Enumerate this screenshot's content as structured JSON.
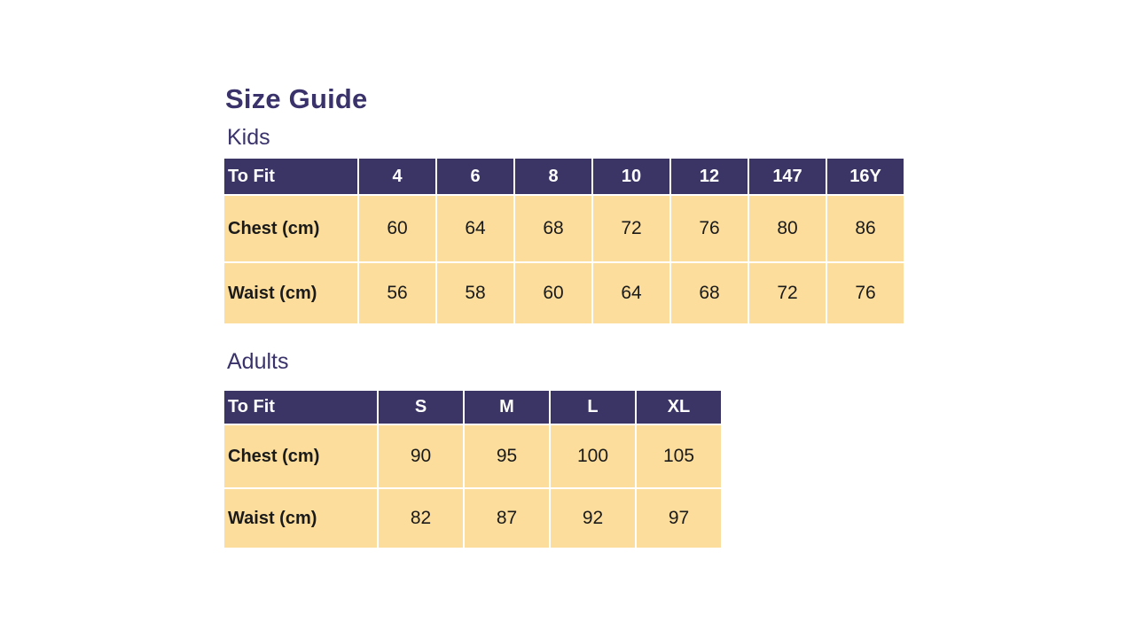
{
  "page": {
    "title": "Size Guide"
  },
  "colors": {
    "page_bg": "#FFFFFF",
    "title_text": "#39326B",
    "header_bg": "#3B3566",
    "header_text": "#FFFFFF",
    "cell_bg": "#FCDD9C",
    "cell_text": "#1A1A1A",
    "grid_line": "#FFFFFF"
  },
  "sections": [
    {
      "label": "Kids",
      "table": {
        "header": [
          "To Fit",
          "4",
          "6",
          "8",
          "10",
          "12",
          "147",
          "16Y"
        ],
        "rows": [
          {
            "label": "Chest (cm)",
            "values": [
              "60",
              "64",
              "68",
              "72",
              "76",
              "80",
              "86"
            ]
          },
          {
            "label": "Waist (cm)",
            "values": [
              "56",
              "58",
              "60",
              "64",
              "68",
              "72",
              "76"
            ]
          }
        ]
      }
    },
    {
      "label": "Adults",
      "table": {
        "header": [
          "To Fit",
          "S",
          "M",
          "L",
          "XL"
        ],
        "rows": [
          {
            "label": "Chest (cm)",
            "values": [
              "90",
              "95",
              "100",
              "105"
            ]
          },
          {
            "label": "Waist (cm)",
            "values": [
              "82",
              "87",
              "92",
              "97"
            ]
          }
        ]
      }
    }
  ]
}
